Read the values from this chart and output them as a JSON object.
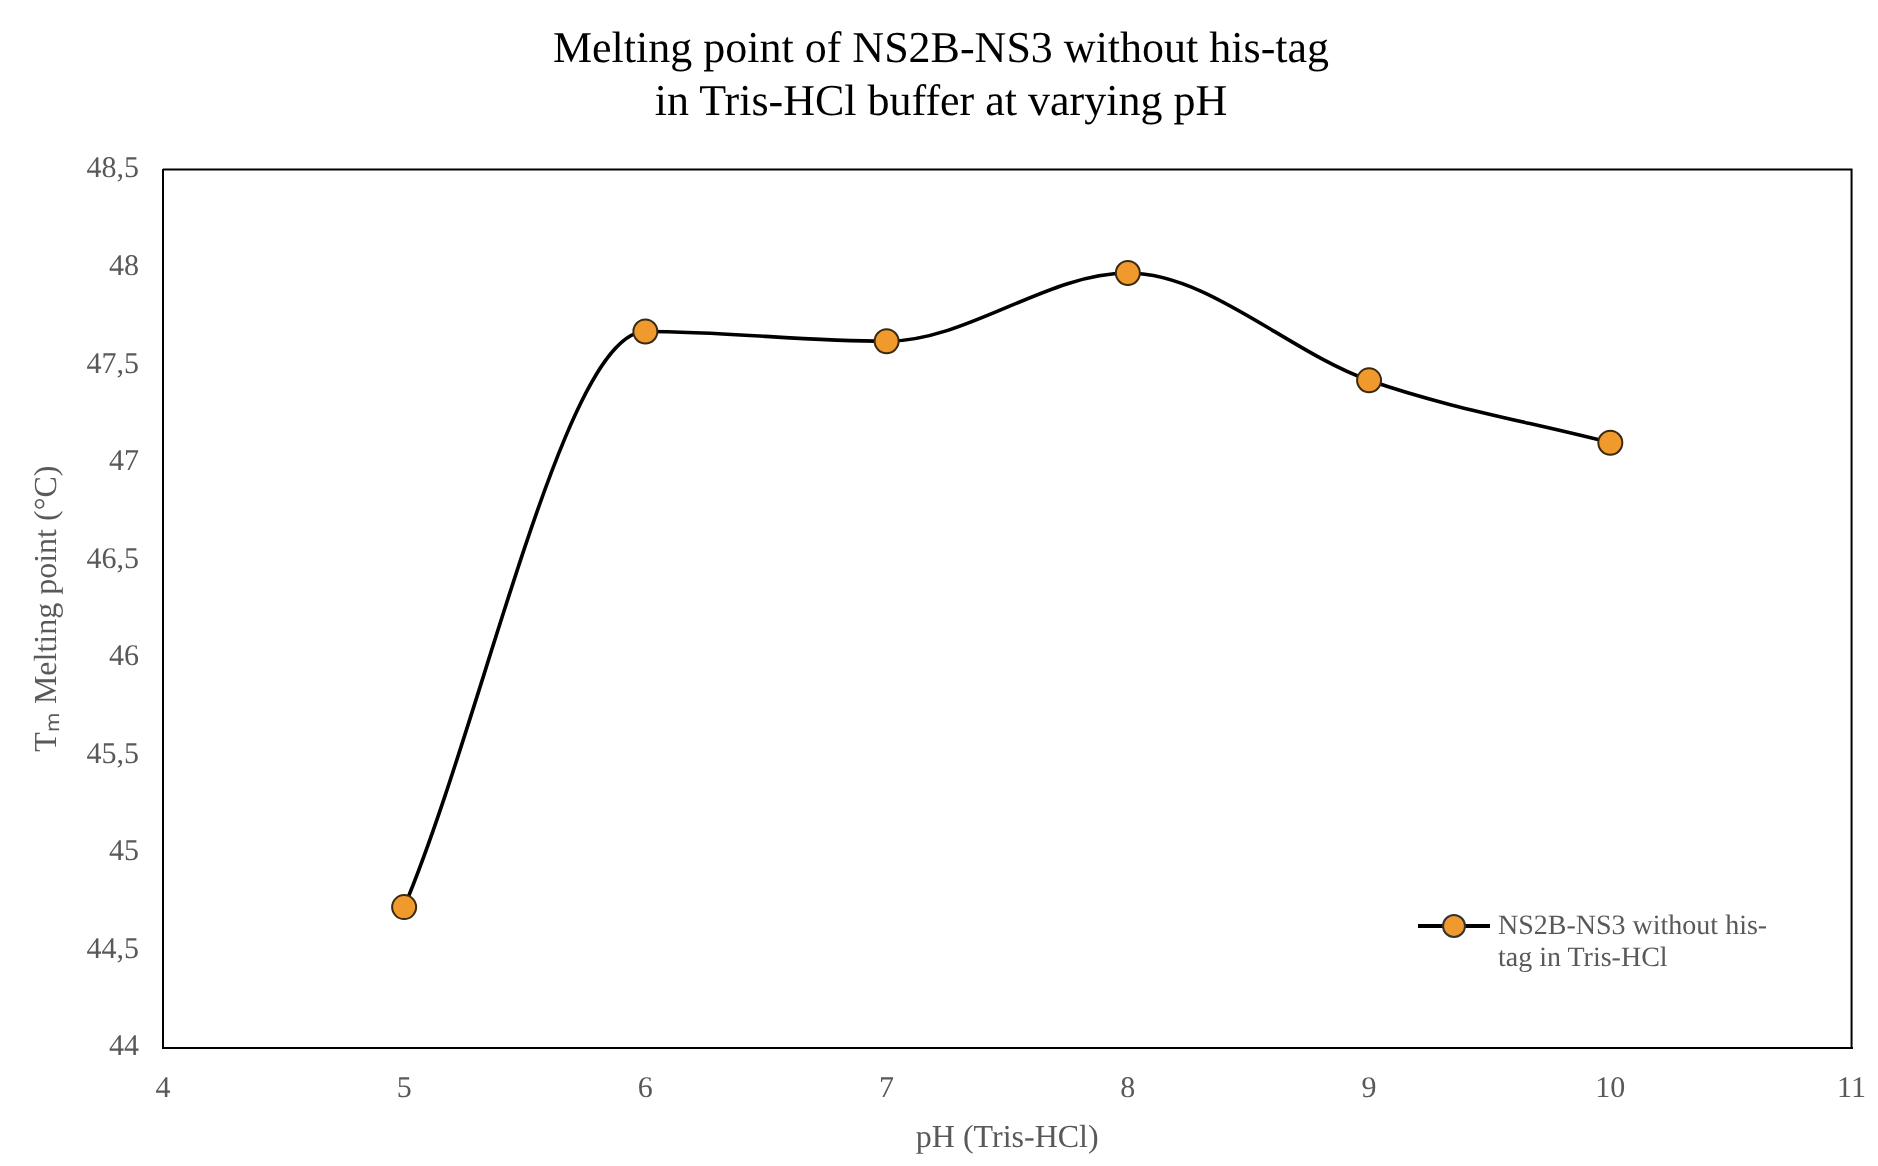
{
  "chart_data": {
    "type": "line",
    "title": "Melting point of NS2B-NS3 without his-tag\nin Tris-HCl buffer at varying pH",
    "xlabel": "pH (Tris-HCl)",
    "ylabel": "Tₘ Melting point (°C)",
    "x": [
      5,
      6,
      7,
      8,
      9,
      10
    ],
    "series": [
      {
        "name": "NS2B-NS3 without his-tag in Tris-HCl",
        "color": "#f09a2e",
        "values": [
          44.72,
          47.67,
          47.62,
          47.97,
          47.42,
          47.1
        ]
      }
    ],
    "xlim": [
      4,
      11
    ],
    "xticks": [
      4,
      5,
      6,
      7,
      8,
      9,
      10,
      11
    ],
    "ylim": [
      44,
      48.5
    ],
    "yticks": [
      44,
      {
        "value": 44.5,
        "label": "44,5"
      },
      45,
      {
        "value": 45.5,
        "label": "45,5"
      },
      46,
      {
        "value": 46.5,
        "label": "46,5"
      },
      47,
      {
        "value": 47.5,
        "label": "47,5"
      },
      48,
      {
        "value": 48.5,
        "label": "48,5"
      }
    ],
    "grid": false,
    "legend": "bottom right",
    "marker": "circle",
    "line_style": "solid"
  }
}
